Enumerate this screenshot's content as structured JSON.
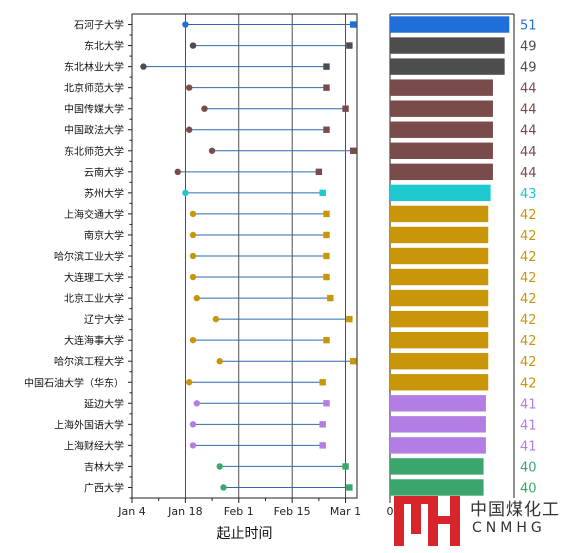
{
  "chart_data": {
    "type": "dumbbell+bar",
    "categories": [
      "石河子大学",
      "东北大学",
      "东北林业大学",
      "北京师范大学",
      "中国传媒大学",
      "中国政法大学",
      "东北师范大学",
      "云南大学",
      "苏州大学",
      "上海交通大学",
      "南京大学",
      "哈尔滨工业大学",
      "大连理工大学",
      "北京工业大学",
      "辽宁大学",
      "大连海事大学",
      "哈尔滨工程大学",
      "中国石油大学（华东）",
      "延边大学",
      "上海外国语大学",
      "上海财经大学",
      "吉林大学",
      "广西大学"
    ],
    "start_dates": [
      "2021-01-18",
      "2021-01-20",
      "2021-01-07",
      "2021-01-19",
      "2021-01-23",
      "2021-01-19",
      "2021-01-25",
      "2021-01-16",
      "2021-01-18",
      "2021-01-20",
      "2021-01-20",
      "2021-01-20",
      "2021-01-20",
      "2021-01-21",
      "2021-01-26",
      "2021-01-20",
      "2021-01-27",
      "2021-01-19",
      "2021-01-21",
      "2021-01-20",
      "2021-01-20",
      "2021-01-27",
      "2021-01-28"
    ],
    "end_dates": [
      "2021-03-03",
      "2021-03-02",
      "2021-02-24",
      "2021-02-24",
      "2021-03-01",
      "2021-02-24",
      "2021-03-03",
      "2021-02-22",
      "2021-02-23",
      "2021-02-24",
      "2021-02-24",
      "2021-02-24",
      "2021-02-24",
      "2021-02-25",
      "2021-03-02",
      "2021-02-24",
      "2021-03-03",
      "2021-02-23",
      "2021-02-24",
      "2021-02-23",
      "2021-02-23",
      "2021-03-01",
      "2021-03-02"
    ],
    "durations": [
      51,
      49,
      49,
      44,
      44,
      44,
      44,
      44,
      43,
      42,
      42,
      42,
      42,
      42,
      42,
      42,
      42,
      42,
      41,
      41,
      41,
      40,
      40
    ],
    "colors": [
      "#1f6fd8",
      "#4d4d4d",
      "#4d4d4d",
      "#7a4b4b",
      "#7a4b4b",
      "#7a4b4b",
      "#7a4b4b",
      "#7a4b4b",
      "#1dc8cf",
      "#c9960a",
      "#c9960a",
      "#c9960a",
      "#c9960a",
      "#c9960a",
      "#c9960a",
      "#c9960a",
      "#c9960a",
      "#c9960a",
      "#b37ee3",
      "#b37ee3",
      "#b37ee3",
      "#3aa66e",
      "#3aa66e"
    ],
    "x_ticks": [
      {
        "date": "2021-01-04",
        "label": "Jan 4"
      },
      {
        "date": "2021-01-18",
        "label": "Jan 18"
      },
      {
        "date": "2021-02-01",
        "label": "Feb 1"
      },
      {
        "date": "2021-02-15",
        "label": "Feb 15"
      },
      {
        "date": "2021-03-01",
        "label": "Mar 1"
      }
    ],
    "xlim": [
      "2021-01-04",
      "2021-03-04"
    ],
    "xlabel": "起止时间",
    "bar_axis_zero_label": "0",
    "bar_xlim": [
      0,
      53
    ],
    "grid": true,
    "line_color": "#2f6aa8"
  },
  "watermark": {
    "cn": "中国煤化工",
    "en": "CNMHG"
  }
}
